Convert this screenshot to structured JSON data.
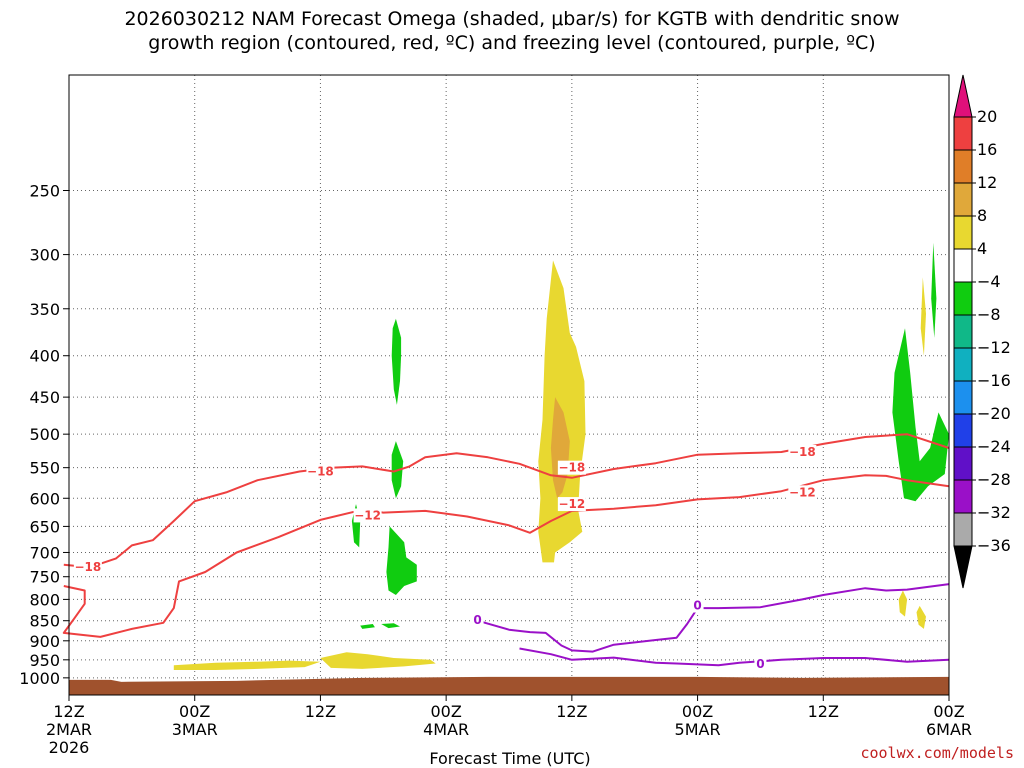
{
  "title": {
    "line1": "2026030212 NAM Forecast Omega (shaded, μbar/s) for KGTB with dendritic snow",
    "line2": "growth region (contoured, red, ºC) and freezing level (contoured, purple, ºC)"
  },
  "credit": "coolwx.com/models",
  "chart_data": {
    "type": "time-height cross-section",
    "xlabel": "Forecast Time (UTC)",
    "ylabel": "",
    "y_axis": {
      "name": "pressure",
      "units": "hPa",
      "scale": "log",
      "inverted": true,
      "range": [
        1050,
        180
      ],
      "ticks": [
        250,
        300,
        350,
        400,
        450,
        500,
        550,
        600,
        650,
        700,
        750,
        800,
        850,
        900,
        950,
        1000
      ]
    },
    "x_axis": {
      "name": "forecast hour",
      "range": [
        0,
        84
      ],
      "ticks": [
        {
          "hour": 0,
          "l1": "12Z",
          "l2": "2MAR",
          "l3": "2026"
        },
        {
          "hour": 12,
          "l1": "00Z",
          "l2": "3MAR",
          "l3": ""
        },
        {
          "hour": 24,
          "l1": "12Z",
          "l2": "",
          "l3": ""
        },
        {
          "hour": 36,
          "l1": "00Z",
          "l2": "4MAR",
          "l3": ""
        },
        {
          "hour": 48,
          "l1": "12Z",
          "l2": "",
          "l3": ""
        },
        {
          "hour": 60,
          "l1": "00Z",
          "l2": "5MAR",
          "l3": ""
        },
        {
          "hour": 72,
          "l1": "12Z",
          "l2": "",
          "l3": ""
        },
        {
          "hour": 84,
          "l1": "00Z",
          "l2": "6MAR",
          "l3": ""
        }
      ]
    },
    "grid": true,
    "colorbar": {
      "labels": [
        "20",
        "16",
        "12",
        "8",
        "4",
        "−4",
        "−8",
        "−12",
        "−16",
        "−20",
        "−24",
        "−28",
        "−32",
        "−36"
      ],
      "top_color": "#e0107a",
      "bottom_color": "#000000",
      "colors": [
        "#ee4040",
        "#e07e28",
        "#e0a83a",
        "#e8d830",
        "#ffffff",
        "#10cc10",
        "#10b888",
        "#10b0c0",
        "#1c90ee",
        "#2040e8",
        "#6010c8",
        "#9a10c8",
        "#aaaaaa"
      ]
    },
    "terrain_color": "#a0522d",
    "contours": [
      {
        "id": "dgz-18",
        "color": "#ee4040",
        "label": "−18",
        "points": [
          [
            -0.5,
            725
          ],
          [
            2,
            730
          ],
          [
            4.5,
            712
          ],
          [
            6,
            686
          ],
          [
            8,
            676
          ],
          [
            10,
            640
          ],
          [
            12,
            605
          ],
          [
            15,
            590
          ],
          [
            18,
            570
          ],
          [
            22,
            556
          ],
          [
            25,
            550
          ],
          [
            28,
            548
          ],
          [
            31,
            556
          ],
          [
            32.5,
            548
          ],
          [
            34,
            534
          ],
          [
            37,
            528
          ],
          [
            40,
            534
          ],
          [
            43,
            544
          ],
          [
            46,
            562
          ],
          [
            48,
            566
          ],
          [
            52,
            552
          ],
          [
            56,
            543
          ],
          [
            60,
            530
          ],
          [
            64,
            528
          ],
          [
            68,
            526
          ],
          [
            72,
            514
          ],
          [
            76,
            504
          ],
          [
            80,
            500
          ],
          [
            84,
            520
          ]
        ],
        "labels": [
          [
            1.8,
            730
          ],
          [
            24,
            556
          ],
          [
            48,
            550
          ],
          [
            70,
            526
          ]
        ]
      },
      {
        "id": "dgz-12",
        "color": "#ee4040",
        "label": "−12",
        "points": [
          [
            -0.5,
            770
          ],
          [
            1.5,
            780
          ],
          [
            1.5,
            810
          ],
          [
            0.5,
            845
          ],
          [
            -0.5,
            880
          ],
          [
            3,
            890
          ],
          [
            6,
            870
          ],
          [
            9,
            855
          ],
          [
            10,
            820
          ],
          [
            10.5,
            760
          ],
          [
            13,
            740
          ],
          [
            16,
            700
          ],
          [
            20,
            670
          ],
          [
            24,
            638
          ],
          [
            28,
            620
          ],
          [
            30,
            625
          ],
          [
            34,
            622
          ],
          [
            38,
            632
          ],
          [
            42,
            648
          ],
          [
            44,
            662
          ],
          [
            46,
            640
          ],
          [
            48,
            622
          ],
          [
            52,
            618
          ],
          [
            56,
            612
          ],
          [
            60,
            602
          ],
          [
            64,
            598
          ],
          [
            68,
            588
          ],
          [
            72,
            570
          ],
          [
            76,
            562
          ],
          [
            78,
            563
          ],
          [
            80,
            570
          ],
          [
            84,
            580
          ]
        ],
        "labels": [
          [
            28.5,
            630
          ],
          [
            48,
            610
          ],
          [
            70,
            590
          ]
        ]
      },
      {
        "id": "freezing-0",
        "color": "#9a10c8",
        "label": "0",
        "points": [
          [
            39,
            850
          ],
          [
            42,
            872
          ],
          [
            44,
            878
          ],
          [
            45.5,
            880
          ],
          [
            47,
            912
          ],
          [
            48,
            925
          ],
          [
            50,
            928
          ],
          [
            52,
            910
          ],
          [
            56,
            898
          ],
          [
            58,
            892
          ],
          [
            59,
            858
          ],
          [
            60,
            820
          ],
          [
            62,
            820
          ],
          [
            66,
            818
          ],
          [
            70,
            800
          ],
          [
            72,
            790
          ],
          [
            76,
            775
          ],
          [
            78,
            780
          ],
          [
            80,
            778
          ],
          [
            84,
            766
          ]
        ],
        "labels": [
          [
            39,
            848
          ],
          [
            60,
            814
          ]
        ]
      },
      {
        "id": "freezing-0-low",
        "color": "#9a10c8",
        "label": "0",
        "points": [
          [
            43,
            920
          ],
          [
            46,
            935
          ],
          [
            48,
            950
          ],
          [
            52,
            944
          ],
          [
            56,
            958
          ],
          [
            58,
            960
          ],
          [
            62,
            965
          ],
          [
            64,
            958
          ],
          [
            68,
            950
          ],
          [
            72,
            945
          ],
          [
            76,
            945
          ],
          [
            80,
            955
          ],
          [
            84,
            950
          ]
        ],
        "labels": [
          [
            66,
            962
          ]
        ]
      }
    ],
    "shaded_regions": [
      {
        "id": "rise-1",
        "value": -6,
        "points": [
          [
            31.2,
            360
          ],
          [
            31.7,
            380
          ],
          [
            31.7,
            400
          ],
          [
            31.6,
            430
          ],
          [
            31.3,
            460
          ],
          [
            31,
            440
          ],
          [
            30.8,
            400
          ],
          [
            30.9,
            370
          ]
        ]
      },
      {
        "id": "rise-2",
        "value": -6,
        "points": [
          [
            31.2,
            510
          ],
          [
            31.9,
            540
          ],
          [
            31.7,
            580
          ],
          [
            31.2,
            600
          ],
          [
            30.8,
            570
          ],
          [
            30.8,
            530
          ]
        ]
      },
      {
        "id": "rise-3",
        "value": -6,
        "points": [
          [
            27.4,
            610
          ],
          [
            27.8,
            640
          ],
          [
            27.7,
            690
          ],
          [
            27.2,
            680
          ],
          [
            27.0,
            640
          ]
        ]
      },
      {
        "id": "rise-4",
        "value": -6,
        "points": [
          [
            30.6,
            650
          ],
          [
            32,
            680
          ],
          [
            32.2,
            710
          ],
          [
            33.2,
            725
          ],
          [
            33.2,
            760
          ],
          [
            32,
            770
          ],
          [
            31.2,
            790
          ],
          [
            30.5,
            780
          ],
          [
            30.3,
            740
          ],
          [
            30.5,
            690
          ]
        ]
      },
      {
        "id": "rise-5",
        "value": -6,
        "points": [
          [
            27.8,
            862
          ],
          [
            29,
            858
          ],
          [
            29.2,
            866
          ],
          [
            28,
            870
          ]
        ]
      },
      {
        "id": "rise-6",
        "value": -6,
        "points": [
          [
            29.8,
            858
          ],
          [
            31,
            856
          ],
          [
            31.6,
            864
          ],
          [
            30.5,
            868
          ]
        ]
      },
      {
        "id": "rise-7",
        "value": -6,
        "points": [
          [
            79.8,
            370
          ],
          [
            80.3,
            420
          ],
          [
            80.8,
            490
          ],
          [
            81.2,
            540
          ],
          [
            82.2,
            520
          ],
          [
            83,
            470
          ],
          [
            84,
            500
          ],
          [
            83.6,
            560
          ],
          [
            82,
            580
          ],
          [
            80.8,
            605
          ],
          [
            79.7,
            600
          ],
          [
            79.2,
            540
          ],
          [
            78.6,
            470
          ],
          [
            78.8,
            420
          ]
        ]
      },
      {
        "id": "rise-8",
        "value": -6,
        "points": [
          [
            82.5,
            290
          ],
          [
            82.8,
            340
          ],
          [
            82.6,
            380
          ],
          [
            82.3,
            340
          ]
        ]
      },
      {
        "id": "sink-1",
        "value": 5,
        "points": [
          [
            46.2,
            305
          ],
          [
            47.2,
            330
          ],
          [
            47.8,
            375
          ],
          [
            48.4,
            390
          ],
          [
            49.2,
            430
          ],
          [
            49.3,
            500
          ],
          [
            48.8,
            560
          ],
          [
            48.6,
            620
          ],
          [
            49,
            660
          ],
          [
            47.8,
            680
          ],
          [
            46.4,
            700
          ],
          [
            46.3,
            720
          ],
          [
            45.2,
            720
          ],
          [
            44.8,
            660
          ],
          [
            45,
            600
          ],
          [
            44.8,
            540
          ],
          [
            45.2,
            480
          ],
          [
            45.4,
            400
          ],
          [
            45.6,
            360
          ]
        ]
      },
      {
        "id": "sink-2",
        "value": 9,
        "points": [
          [
            46.4,
            450
          ],
          [
            47.2,
            470
          ],
          [
            47.8,
            510
          ],
          [
            47.6,
            560
          ],
          [
            47.1,
            590
          ],
          [
            46.6,
            600
          ],
          [
            46.2,
            570
          ],
          [
            46,
            520
          ],
          [
            46.2,
            480
          ]
        ]
      },
      {
        "id": "sink-3",
        "value": 5,
        "points": [
          [
            81.5,
            320
          ],
          [
            81.8,
            355
          ],
          [
            81.6,
            400
          ],
          [
            81.3,
            370
          ]
        ]
      },
      {
        "id": "sink-4",
        "value": 5,
        "points": [
          [
            79.6,
            780
          ],
          [
            80,
            800
          ],
          [
            79.8,
            840
          ],
          [
            79.3,
            830
          ],
          [
            79.2,
            800
          ]
        ]
      },
      {
        "id": "sink-5",
        "value": 5,
        "points": [
          [
            81.2,
            815
          ],
          [
            81.8,
            840
          ],
          [
            81.6,
            870
          ],
          [
            81.1,
            860
          ],
          [
            80.9,
            830
          ]
        ]
      },
      {
        "id": "sink-6",
        "value": 5,
        "points": [
          [
            10,
            965
          ],
          [
            14,
            958
          ],
          [
            18,
            955
          ],
          [
            21,
            952
          ],
          [
            24,
            955
          ],
          [
            22.5,
            970
          ],
          [
            18,
            975
          ],
          [
            14,
            978
          ],
          [
            10,
            978
          ]
        ]
      },
      {
        "id": "sink-7",
        "value": 5,
        "points": [
          [
            24,
            945
          ],
          [
            26.5,
            930
          ],
          [
            28.5,
            935
          ],
          [
            31,
            945
          ],
          [
            34.5,
            950
          ],
          [
            35,
            960
          ],
          [
            32,
            968
          ],
          [
            28,
            975
          ],
          [
            25,
            972
          ]
        ]
      }
    ]
  }
}
